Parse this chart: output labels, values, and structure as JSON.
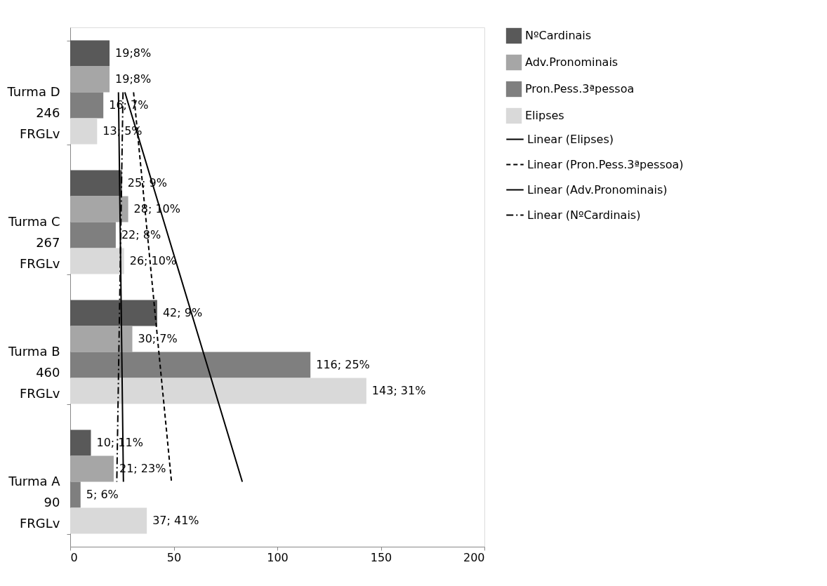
{
  "chart_data": {
    "type": "bar",
    "orientation": "horizontal",
    "categories": [
      "Turma D\n246\nFRGLv",
      "Turma C\n267\nFRGLv",
      "Turma B\n460\nFRGLv",
      "Turma A\n90\nFRGLv"
    ],
    "series": [
      {
        "name": "NºCardinais",
        "color": "#595959",
        "values": [
          19,
          25,
          42,
          10
        ],
        "value_labels": [
          "19;8%",
          "25; 9%",
          "42; 9%",
          "10; 11%"
        ]
      },
      {
        "name": "Adv.Pronominais",
        "color": "#a6a6a6",
        "values": [
          19,
          28,
          30,
          21
        ],
        "value_labels": [
          "19;8%",
          "28; 10%",
          "30; 7%",
          "21; 23%"
        ]
      },
      {
        "name": "Pron.Pess.3ªpessoa",
        "color": "#7f7f7f",
        "values": [
          16,
          22,
          116,
          5
        ],
        "value_labels": [
          "16; 7%",
          "22; 8%",
          "116; 25%",
          "5; 6%"
        ]
      },
      {
        "name": "Elipses",
        "color": "#d9d9d9",
        "values": [
          13,
          26,
          143,
          37
        ],
        "value_labels": [
          "13; 5%",
          "26; 10%",
          "143; 31%",
          "37; 41%"
        ]
      },
      {
        "name": "Linear (Elipses)",
        "type": "line",
        "color": "#000000",
        "line_style": "solid",
        "values": [
          26.4,
          45.3,
          64.2,
          83.1
        ]
      },
      {
        "name": "Linear (Pron.Pess.3ªpessoa)",
        "type": "line",
        "color": "#000000",
        "line_style": "dashed",
        "values": [
          30.6,
          36.7,
          42.8,
          48.9
        ]
      },
      {
        "name": "Linear (Adv.Pronominais)",
        "type": "line",
        "color": "#000000",
        "line_style": "solid",
        "values": [
          23.3,
          24.1,
          24.9,
          25.7
        ]
      },
      {
        "name": "Linear (NºCardinais)",
        "type": "line",
        "color": "#000000",
        "line_style": "dotted",
        "values": [
          25.5,
          24.5,
          23.5,
          22.5
        ]
      }
    ],
    "xlim": [
      0,
      200
    ],
    "xticks": [
      0,
      50,
      100,
      150,
      200
    ],
    "grid": false,
    "legend": "right"
  }
}
